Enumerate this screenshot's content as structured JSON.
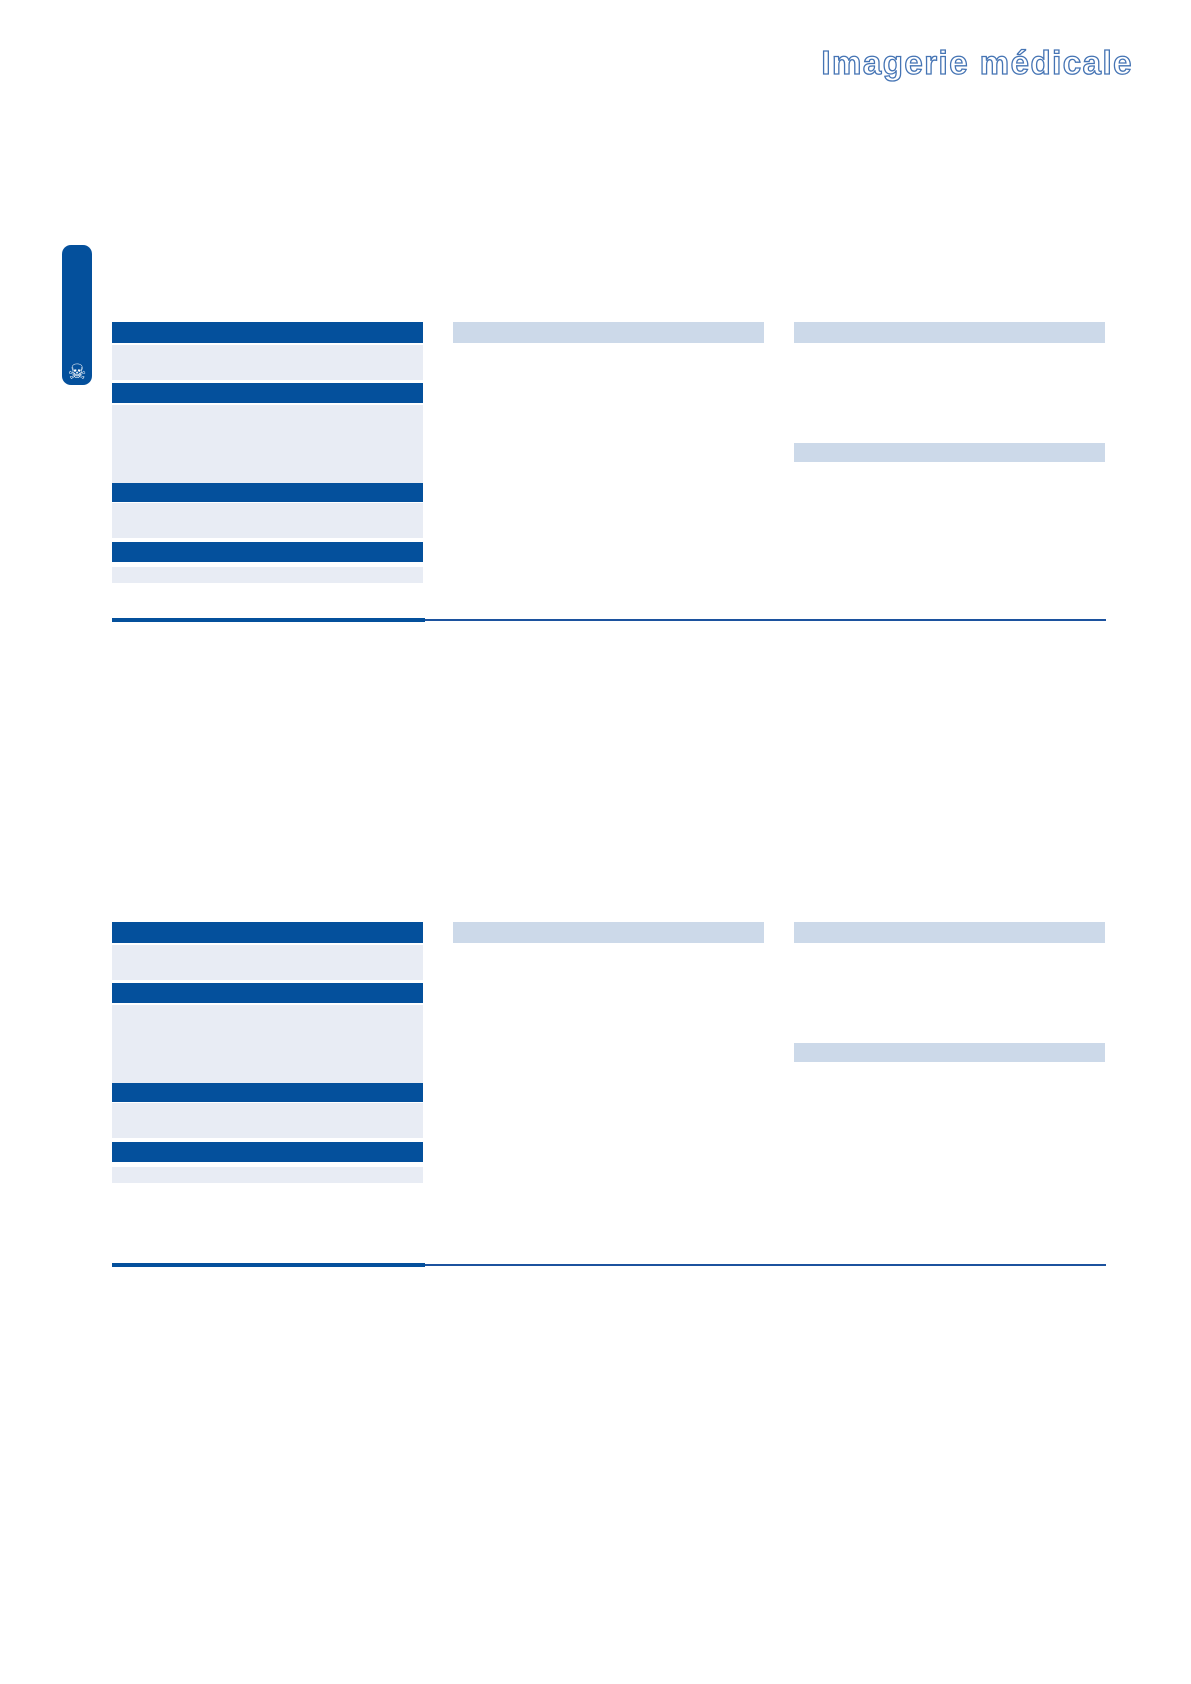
{
  "page": {
    "title": "Imagerie médicale"
  },
  "side_tab": {
    "icon": "skull-crossbones",
    "symbol": "☠"
  },
  "colors": {
    "primary_blue": "#04509C",
    "row_light_blue": "#E8ECF4",
    "header_light_blue": "#CCD9E9",
    "divider_thin_blue": "#1C529E",
    "title_outline_blue": "#4574B4",
    "tab_icon_white": "#FFFFFF"
  }
}
